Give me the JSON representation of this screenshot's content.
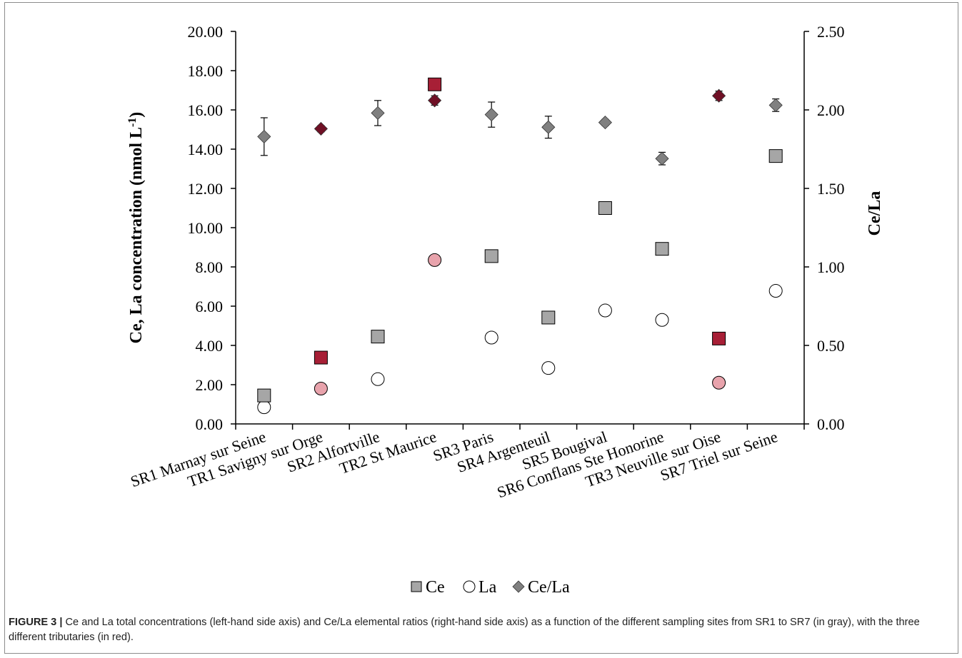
{
  "figure": {
    "label": "FIGURE 3 |",
    "caption": " Ce and La total concentrations (left-hand side axis) and Ce/La elemental ratios (right-hand side axis) as a function of the different sampling sites from SR1 to SR7 (in gray), with the three different tributaries (in red)."
  },
  "colors": {
    "gray_fill": "#a6a6a6",
    "red_square": "#a71f36",
    "red_circle": "#e8a3ac",
    "red_diamond": "#6f1025",
    "gray_diamond": "#808080",
    "axis": "#000000"
  },
  "chart_data": {
    "type": "scatter",
    "categories": [
      "SR1 Marnay sur Seine",
      "TR1 Savigny sur Orge",
      "SR2 Alfortville",
      "TR2 St Maurice",
      "SR3 Paris",
      "SR4 Argenteuil",
      "SR5 Bougival",
      "SR6 Conflans Ste Honorine",
      "TR3 Neuville sur Oise",
      "SR7 Triel sur Seine"
    ],
    "tributary": [
      false,
      true,
      false,
      true,
      false,
      false,
      false,
      false,
      true,
      false
    ],
    "series": [
      {
        "name": "Ce",
        "axis": "left",
        "marker": "square",
        "values": [
          1.45,
          3.38,
          4.45,
          17.3,
          8.55,
          5.42,
          11.0,
          8.92,
          4.35,
          13.65
        ]
      },
      {
        "name": "La",
        "axis": "left",
        "marker": "circle",
        "values": [
          0.85,
          1.8,
          2.28,
          8.35,
          4.4,
          2.85,
          5.78,
          5.3,
          2.1,
          6.78
        ]
      },
      {
        "name": "Ce/La",
        "axis": "right",
        "marker": "diamond",
        "values": [
          1.83,
          1.88,
          1.98,
          2.06,
          1.97,
          1.89,
          1.92,
          1.69,
          2.09,
          2.03
        ],
        "error": [
          0.12,
          0.02,
          0.08,
          0.03,
          0.08,
          0.07,
          0.02,
          0.04,
          0.03,
          0.04
        ]
      }
    ],
    "ylabel_left": "Ce, La concentration (nmol L-1)",
    "ylabel_right": "Ce/La",
    "ylim_left": [
      0,
      20
    ],
    "ylim_right": [
      0,
      2.5
    ],
    "yticks_left": [
      "0.00",
      "2.00",
      "4.00",
      "6.00",
      "8.00",
      "10.00",
      "12.00",
      "14.00",
      "16.00",
      "18.00",
      "20.00"
    ],
    "yticks_right": [
      "0.00",
      "0.50",
      "1.00",
      "1.50",
      "2.00",
      "2.50"
    ],
    "grid": false,
    "legend": {
      "placement": "bottom",
      "items": [
        "Ce",
        "La",
        "Ce/La"
      ]
    }
  }
}
